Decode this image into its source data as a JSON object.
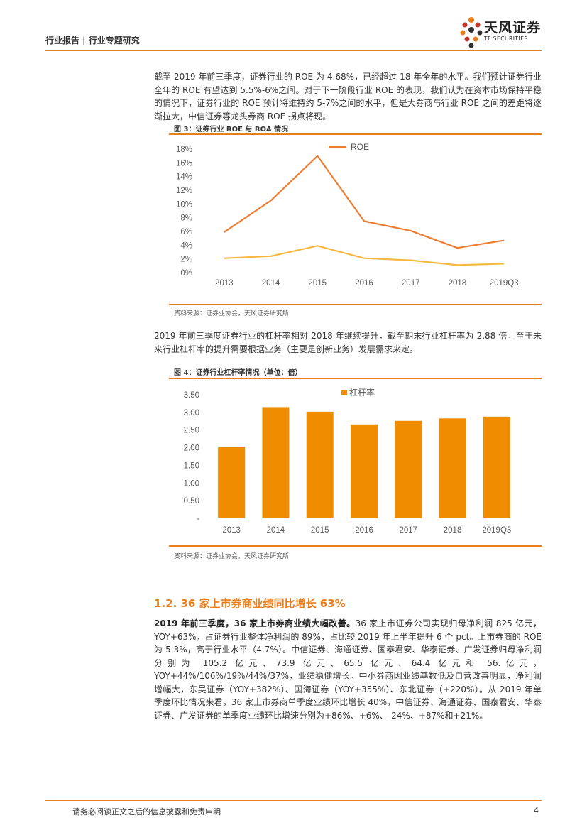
{
  "header": {
    "left": "行业报告 | 行业专题研究",
    "logo_cn": "天风证券",
    "logo_en": "TF SECURITIES"
  },
  "para1": "截至 2019 年前三季度，证券行业的 ROE 为 4.68%，已经超过 18 年全年的水平。我们预计证券行业全年的 ROE 有望达到 5.5%-6%之间。对于下一阶段行业 ROE 的表现，我们认为在资本市场保持平稳的情况下，证券行业的 ROE 预计将维持约 5-7%之间的水平，但是大券商与行业 ROE 之间的差距将逐渐拉大，中信证券等龙头券商 ROE 拐点将现。",
  "fig3": {
    "title": "图 3：证券行业 ROE 与 ROA 情况",
    "source": "资料来源：证券业协会，天风证券研究所"
  },
  "para2": "2019 年前三季度证券行业的杠杆率相对 2018 年继续提升，截至期末行业杠杆率为 2.88 倍。至于未来行业杠杆率的提升需要根据业务（主要是创新业务）发展需求来定。",
  "fig4": {
    "title": "图 4：证券行业杠杆率情况（单位：倍）",
    "source": "资料来源：证券业协会，天风证券研究所"
  },
  "section": {
    "title": "1.2. 36 家上市券商业绩同比增长 63%",
    "lead": "2019 年前三季度，36 家上市券商业绩大幅改善。",
    "body": "36 家上市证券公司实现归母净利润 825 亿元，YOY+63%，占证券行业整体净利润的 89%，占比较 2019 年上半年提升 6 个 pct。上市券商的 ROE 为 5.3%，高于行业水平（4.7%）。中信证券、海通证券、国泰君安、华泰证券、广发证券归母净利润分别为 105.2 亿元、73.9 亿元、65.5 亿元、64.4 亿元和 56.亿元，YOY+44%/106%/19%/44%/37%，业绩稳健增长。中小券商因业绩基数低及自营改善明显，净利润增幅大，东吴证券（YOY+382%）、国海证券（YOY+355%）、东北证券（+220%）。从 2019 年单季度环比情况来看，36 家上市券商单季度业绩环比增长 40%，中信证券、海通证券、国泰君安、华泰证券、广发证券的单季度业绩环比增速分别为+86%、+6%、-24%、+87%和+21%。"
  },
  "footer": {
    "text": "请务必阅读正文之后的信息披露和免责申明",
    "page": "4"
  },
  "colors": {
    "accent": "#e87e1c",
    "roe": "#ed7d31",
    "roa": "#f4b942",
    "bar": "#f08c00"
  },
  "chart_data": [
    {
      "type": "line",
      "categories": [
        "2013",
        "2014",
        "2015",
        "2016",
        "2017",
        "2018",
        "2019Q3"
      ],
      "series": [
        {
          "name": "ROE",
          "values": [
            5.9,
            10.5,
            17.0,
            7.5,
            6.1,
            3.6,
            4.7
          ]
        },
        {
          "values": [
            2.1,
            2.4,
            3.9,
            2.1,
            1.8,
            1.1,
            1.3
          ]
        }
      ],
      "y_ticks": [
        "0%",
        "2%",
        "4%",
        "6%",
        "8%",
        "10%",
        "12%",
        "14%",
        "16%",
        "18%"
      ],
      "ylim": [
        0,
        18
      ],
      "legend": "top"
    },
    {
      "type": "bar",
      "categories": [
        "2013",
        "2014",
        "2015",
        "2016",
        "2017",
        "2018",
        "2019Q3"
      ],
      "series": [
        {
          "name": "杠杆率",
          "values": [
            2.03,
            3.15,
            3.02,
            2.66,
            2.76,
            2.83,
            2.88
          ]
        }
      ],
      "y_ticks": [
        "-",
        "0.50",
        "1.00",
        "1.50",
        "2.00",
        "2.50",
        "3.00",
        "3.50"
      ],
      "ylim": [
        0,
        3.5
      ],
      "legend": "top"
    }
  ]
}
